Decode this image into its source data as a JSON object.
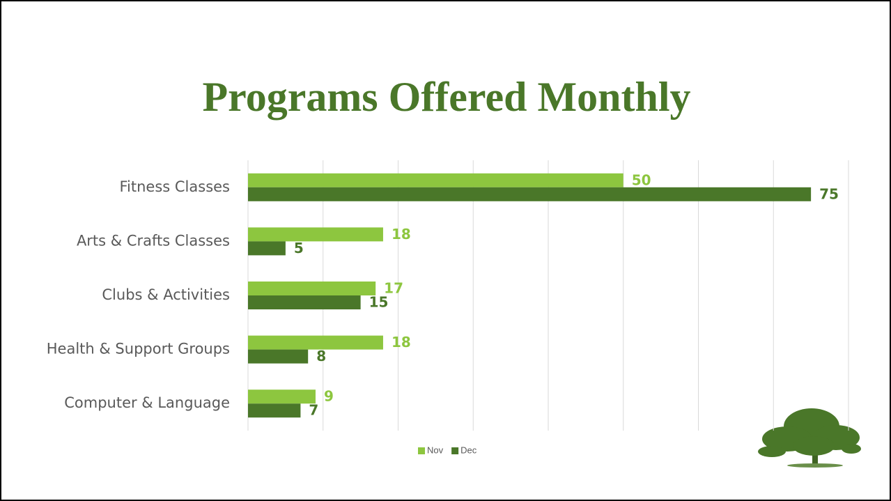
{
  "chart_data": {
    "type": "hbar",
    "title": "Programs Offered Monthly",
    "categories": [
      "Fitness Classes",
      "Arts & Crafts Classes",
      "Clubs & Activities",
      "Health & Support Groups",
      "Computer & Language"
    ],
    "series": [
      {
        "name": "Nov",
        "color": "#8dc63f",
        "values": [
          50,
          18,
          17,
          18,
          9
        ]
      },
      {
        "name": "Dec",
        "color": "#4a7729",
        "values": [
          75,
          5,
          15,
          8,
          7
        ]
      }
    ],
    "xlim": [
      0,
      80
    ],
    "xticks": [
      0,
      10,
      20,
      30,
      40,
      50,
      60,
      70,
      80
    ],
    "grid": true,
    "legend": "bottom"
  }
}
